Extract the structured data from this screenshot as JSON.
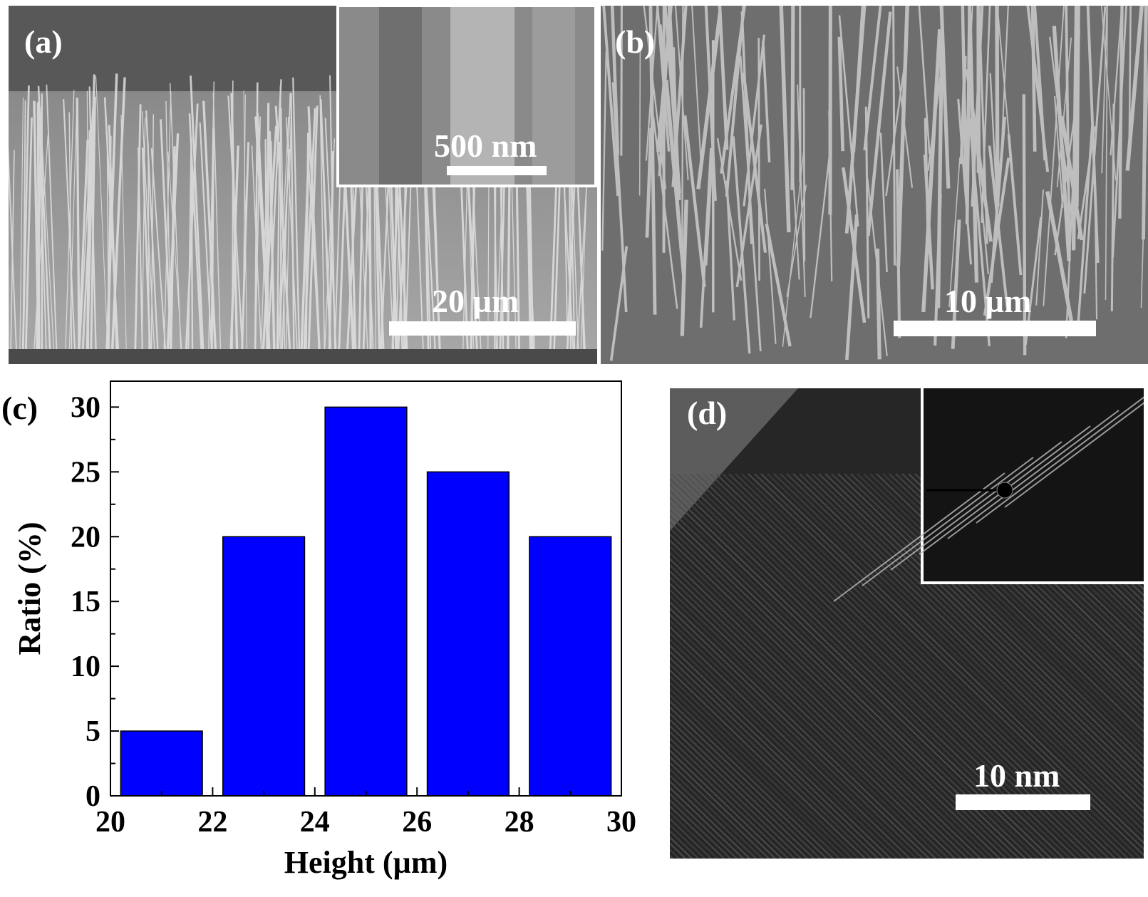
{
  "panels": {
    "a": {
      "label": "(a)",
      "scale": "20 µm",
      "inset_scale": "500 nm"
    },
    "b": {
      "label": "(b)",
      "scale": "10 µm"
    },
    "c": {
      "label": "(c)"
    },
    "d": {
      "label": "(d)",
      "scale": "10 nm"
    }
  },
  "chart_data": {
    "type": "bar",
    "xlabel": "Height (µm)",
    "ylabel": "Ratio (%)",
    "xlim": [
      20,
      30
    ],
    "ylim": [
      0,
      32
    ],
    "xticks": [
      20,
      22,
      24,
      26,
      28,
      30
    ],
    "yticks": [
      0,
      5,
      10,
      15,
      20,
      25,
      30
    ],
    "bars": [
      {
        "x0": 20.2,
        "x1": 21.8,
        "value": 5
      },
      {
        "x0": 22.2,
        "x1": 23.8,
        "value": 20
      },
      {
        "x0": 24.2,
        "x1": 25.8,
        "value": 30
      },
      {
        "x0": 26.2,
        "x1": 27.8,
        "value": 25
      },
      {
        "x0": 28.2,
        "x1": 29.8,
        "value": 20
      }
    ],
    "bar_color": "#0000ff",
    "grid": false
  }
}
